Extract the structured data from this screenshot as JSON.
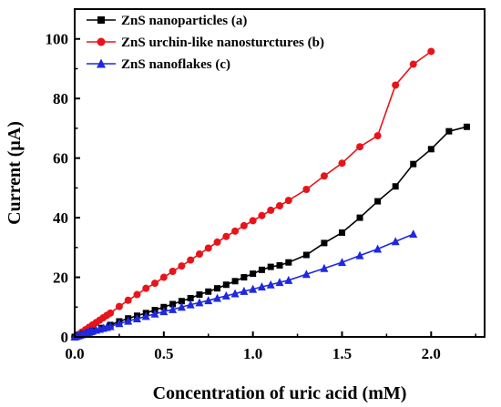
{
  "chart_data": {
    "type": "line",
    "title": "",
    "xlabel": "Concentration of uric acid (mM)",
    "ylabel": "Current (μA)",
    "xlim": [
      0,
      2.3
    ],
    "ylim": [
      0,
      110
    ],
    "x_ticks": [
      "0.0",
      "0.5",
      "1.0",
      "1.5",
      "2.0"
    ],
    "y_ticks": [
      "0",
      "20",
      "40",
      "60",
      "80",
      "100"
    ],
    "legend_position": "top-left",
    "series": [
      {
        "name": "ZnS nanoparticles (a)",
        "color": "#000000",
        "marker": "square",
        "x": [
          0.0,
          0.02,
          0.05,
          0.08,
          0.1,
          0.15,
          0.2,
          0.25,
          0.3,
          0.35,
          0.4,
          0.45,
          0.5,
          0.55,
          0.6,
          0.65,
          0.7,
          0.75,
          0.8,
          0.85,
          0.9,
          0.95,
          1.0,
          1.05,
          1.1,
          1.15,
          1.2,
          1.3,
          1.4,
          1.5,
          1.6,
          1.7,
          1.8,
          1.9,
          2.0,
          2.1,
          2.2
        ],
        "y": [
          0.0,
          0.5,
          1.0,
          1.5,
          2.0,
          3.0,
          4.0,
          5.2,
          6.2,
          7.1,
          8.0,
          9.0,
          10.0,
          11.0,
          12.0,
          13.0,
          14.2,
          15.2,
          16.3,
          17.5,
          18.7,
          20.0,
          21.2,
          22.5,
          23.5,
          24.0,
          25.0,
          27.5,
          31.5,
          35.0,
          40.0,
          45.5,
          50.5,
          58.0,
          63.0,
          69.0,
          70.5
        ]
      },
      {
        "name": "ZnS urchin-like nanosturctures (b)",
        "color": "#e8141a",
        "marker": "circle",
        "x": [
          0.0,
          0.02,
          0.04,
          0.06,
          0.08,
          0.1,
          0.12,
          0.14,
          0.16,
          0.18,
          0.2,
          0.25,
          0.3,
          0.35,
          0.4,
          0.45,
          0.5,
          0.55,
          0.6,
          0.65,
          0.7,
          0.75,
          0.8,
          0.85,
          0.9,
          0.95,
          1.0,
          1.05,
          1.1,
          1.15,
          1.2,
          1.3,
          1.4,
          1.5,
          1.6,
          1.7,
          1.8,
          1.9,
          2.0
        ],
        "y": [
          0.0,
          0.8,
          1.6,
          2.4,
          3.2,
          4.0,
          4.8,
          5.6,
          6.4,
          7.2,
          8.0,
          10.2,
          12.3,
          14.2,
          16.3,
          18.0,
          20.0,
          22.0,
          23.8,
          25.8,
          27.8,
          29.8,
          31.8,
          33.7,
          35.5,
          37.3,
          39.0,
          40.7,
          42.5,
          44.0,
          45.8,
          49.5,
          54.0,
          58.3,
          63.8,
          67.5,
          84.5,
          91.5,
          95.8
        ]
      },
      {
        "name": "ZnS nanoflakes (c)",
        "color": "#1f28e0",
        "marker": "triangle",
        "x": [
          0.0,
          0.01,
          0.02,
          0.03,
          0.04,
          0.05,
          0.06,
          0.07,
          0.08,
          0.09,
          0.1,
          0.12,
          0.14,
          0.16,
          0.18,
          0.2,
          0.25,
          0.3,
          0.35,
          0.4,
          0.45,
          0.5,
          0.55,
          0.6,
          0.65,
          0.7,
          0.75,
          0.8,
          0.85,
          0.9,
          0.95,
          1.0,
          1.05,
          1.1,
          1.15,
          1.2,
          1.3,
          1.4,
          1.5,
          1.6,
          1.7,
          1.8,
          1.9
        ],
        "y": [
          0.0,
          0.2,
          0.4,
          0.6,
          0.8,
          1.0,
          1.2,
          1.4,
          1.6,
          1.8,
          2.0,
          2.3,
          2.6,
          2.9,
          3.2,
          3.5,
          4.5,
          5.3,
          6.1,
          6.9,
          7.7,
          8.5,
          9.2,
          10.0,
          10.8,
          11.5,
          12.2,
          13.0,
          13.8,
          14.5,
          15.3,
          16.0,
          16.8,
          17.5,
          18.3,
          19.0,
          21.0,
          23.0,
          25.0,
          27.3,
          29.5,
          32.0,
          34.5
        ]
      }
    ]
  }
}
